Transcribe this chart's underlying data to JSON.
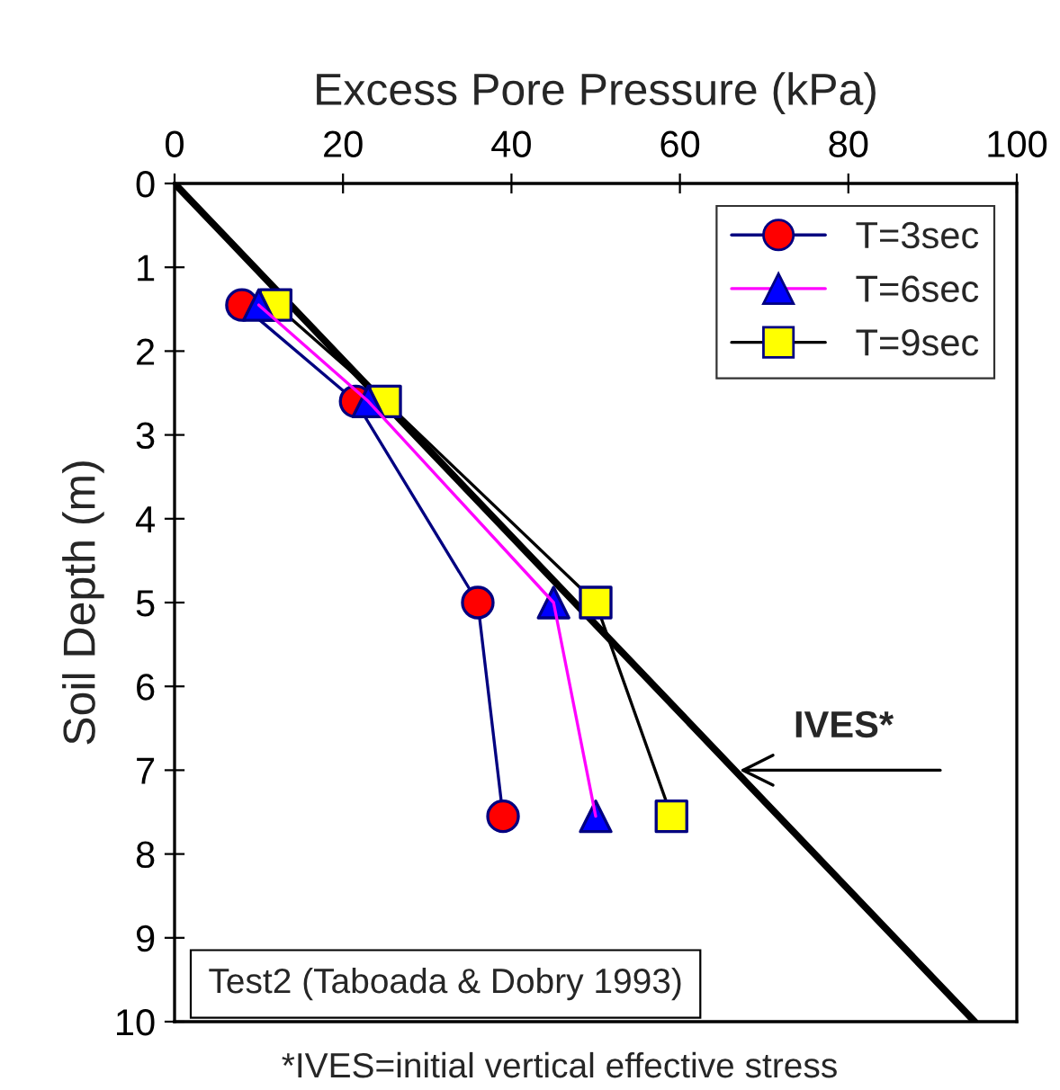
{
  "chart_data": {
    "type": "line",
    "xlabel": "Excess Pore Pressure (kPa)",
    "ylabel": "Soil Depth (m)",
    "xlim": [
      0,
      100
    ],
    "xticks": [
      0,
      20,
      40,
      60,
      80,
      100
    ],
    "ylim": [
      10,
      0
    ],
    "yticks": [
      0,
      1,
      2,
      3,
      4,
      5,
      6,
      7,
      8,
      9,
      10
    ],
    "grid": false,
    "legend": "top right",
    "series": [
      {
        "name": "T=3sec",
        "color": "#000080",
        "marker": "circle",
        "colors": [
          "#ff0000",
          "#ff0000",
          "#ff0000",
          "#ff0000"
        ],
        "x": [
          8,
          21.5,
          36,
          39
        ],
        "values": [
          1.45,
          2.6,
          5,
          7.55
        ]
      },
      {
        "name": "T=6sec",
        "color": "#ff00ff",
        "marker": "triangle",
        "colors": [
          "#0000ff",
          "#0000ff",
          "#0000ff",
          "#0000ff"
        ],
        "x": [
          10,
          23,
          45,
          50
        ],
        "values": [
          1.45,
          2.6,
          5,
          7.55
        ]
      },
      {
        "name": "T=9sec",
        "color": "#000000",
        "marker": "square",
        "colors": [
          "#ffff00",
          "#ffff00",
          "#ffff00",
          "#ffff00"
        ],
        "x": [
          12,
          25,
          50,
          59
        ],
        "values": [
          1.45,
          2.6,
          5,
          7.55
        ]
      },
      {
        "color": "#000000",
        "x": [
          0,
          95
        ],
        "values": [
          0,
          10
        ]
      }
    ],
    "annotations": [
      {
        "text": "IVES*",
        "x": 66.5,
        "y": 7
      },
      "Test2 (Taboada & Dobry 1993)",
      "*IVES=initial vertical effective stress"
    ]
  }
}
